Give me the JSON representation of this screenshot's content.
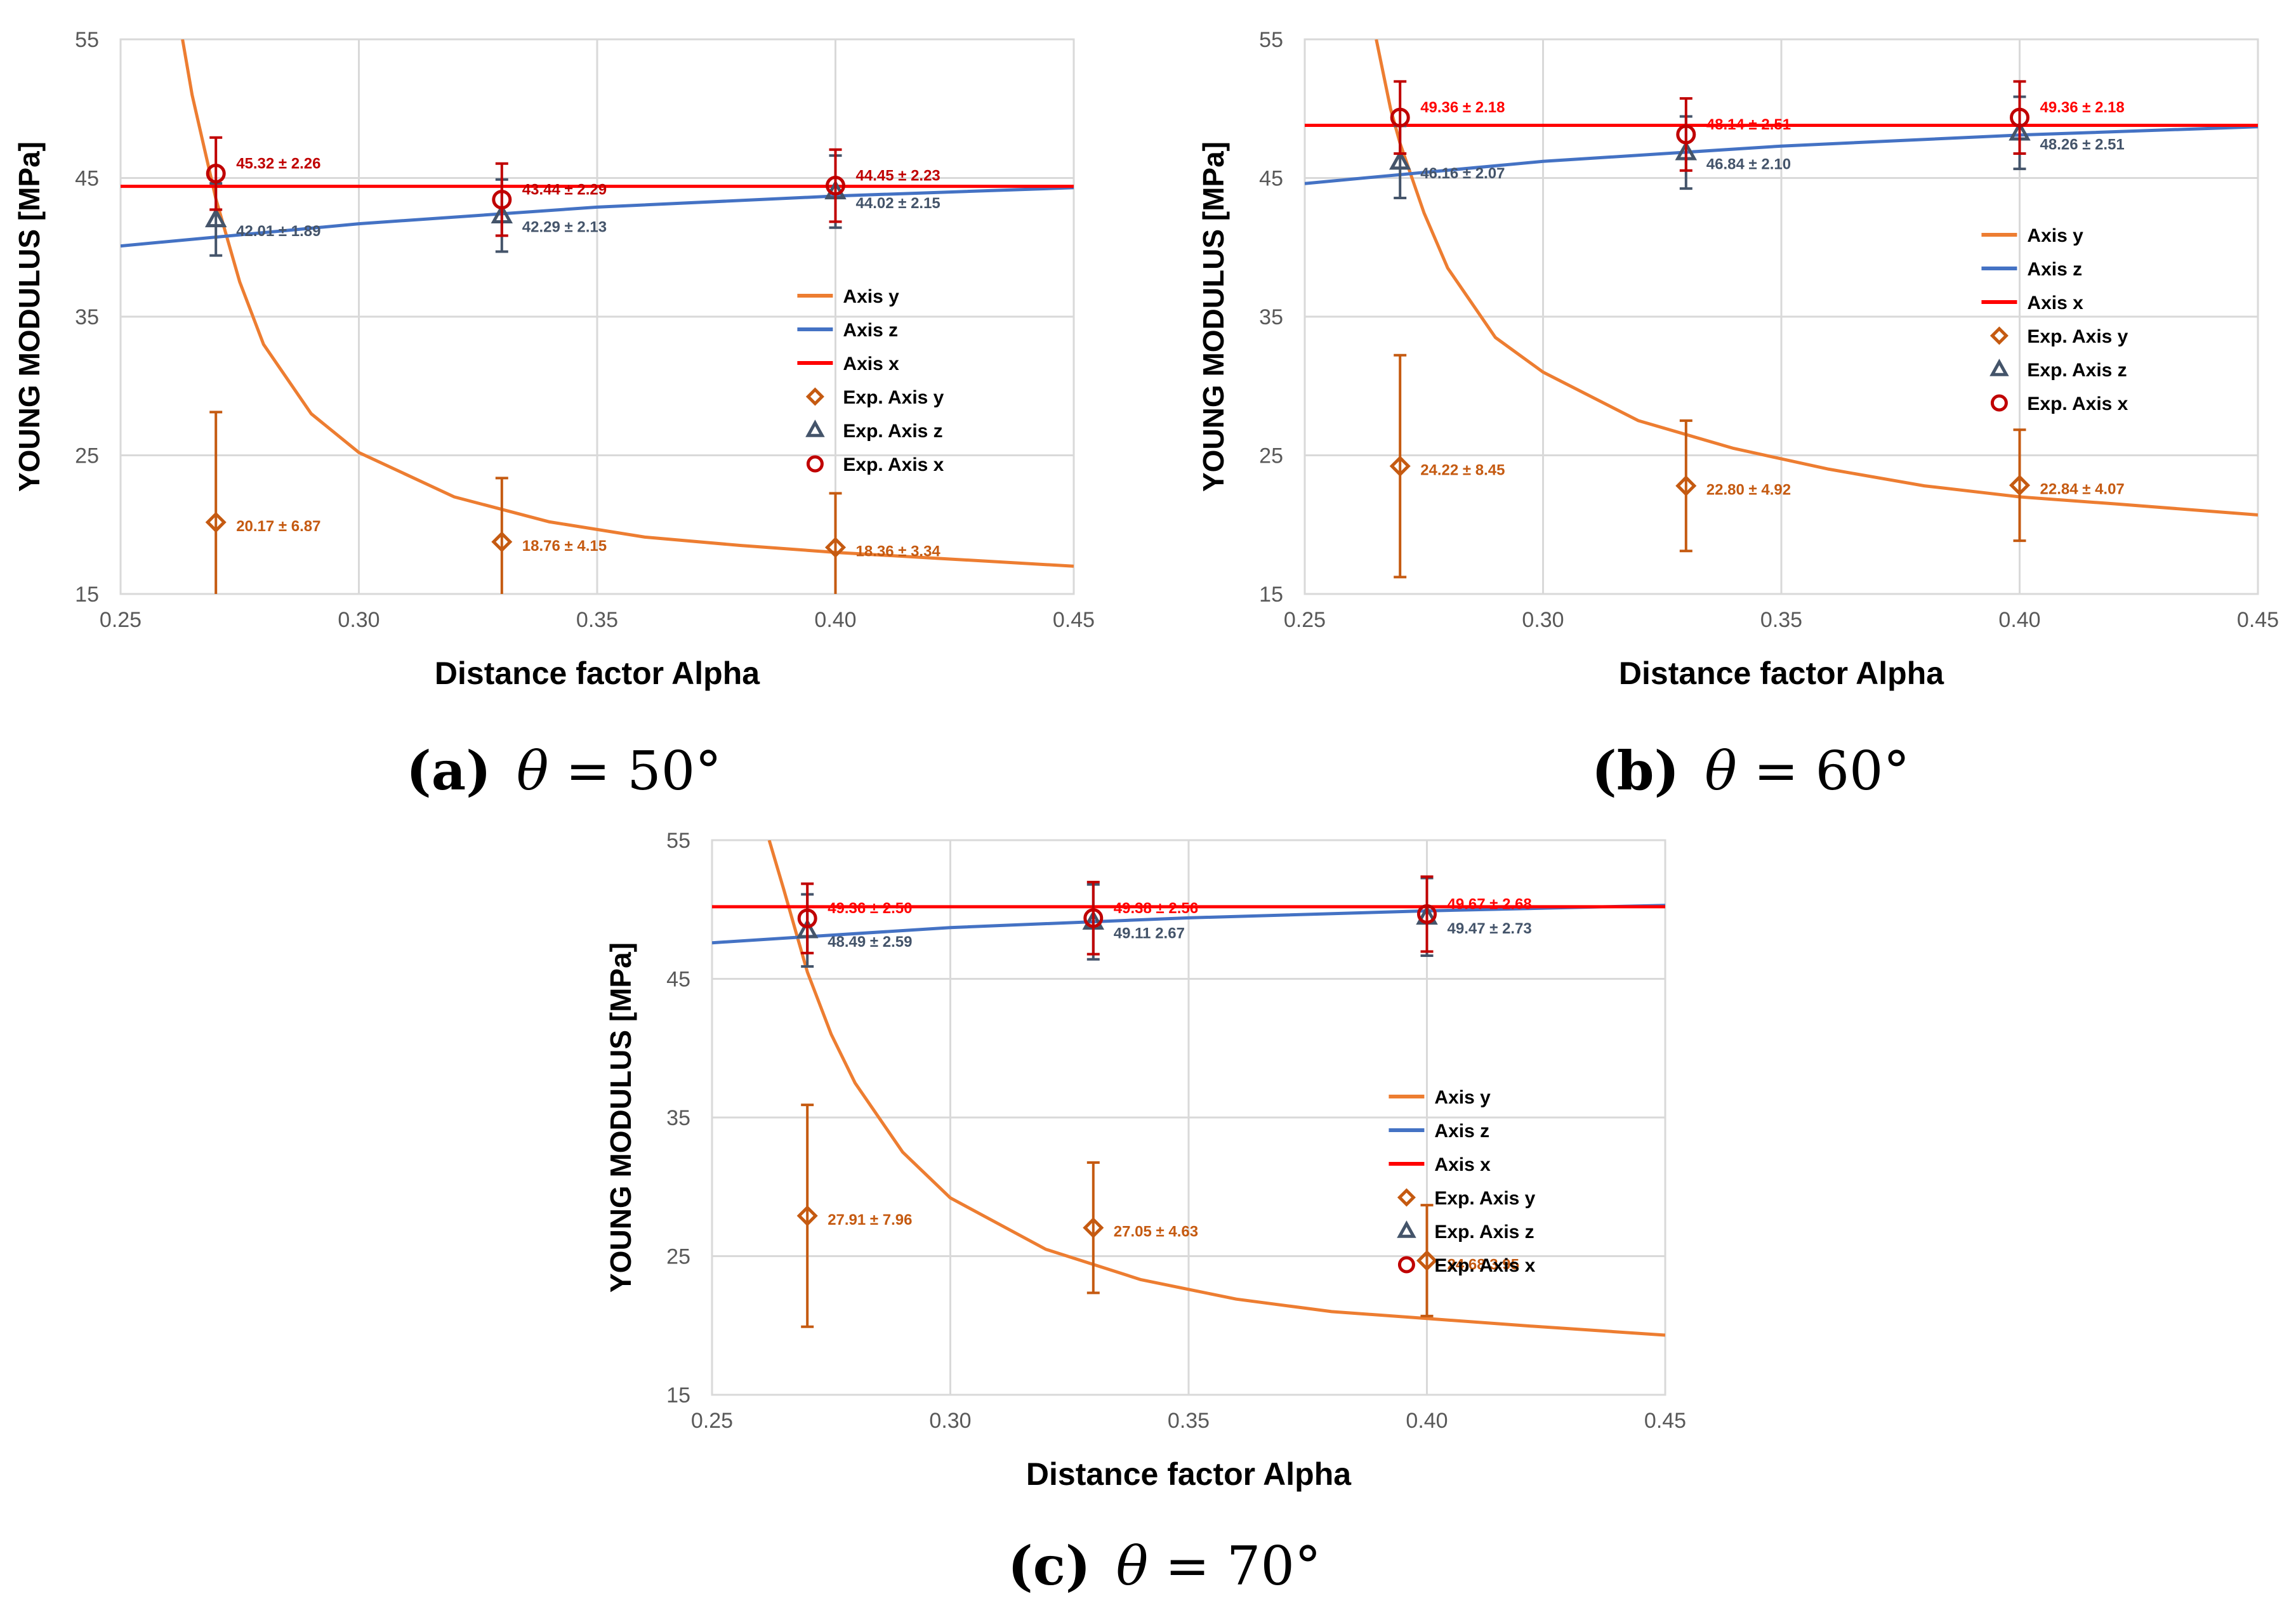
{
  "chart_data": [
    {
      "id": "a",
      "type": "line",
      "xlabel": "Distance factor Alpha",
      "ylabel": "YOUNG MODULUS [MPa]",
      "xlim": [
        0.25,
        0.45
      ],
      "ylim": [
        15,
        55
      ],
      "x_ticks": [
        "0.25",
        "0.30",
        "0.35",
        "0.40",
        "0.45"
      ],
      "y_ticks": [
        "15",
        "25",
        "35",
        "45",
        "55"
      ],
      "grid": true,
      "legend_placement": "right",
      "caption_label": "(a)",
      "caption_var": "θ",
      "caption_eq": "= 50°",
      "curves": [
        {
          "name": "Axis y",
          "color": "#ED7D31",
          "x": [
            0.263,
            0.265,
            0.27,
            0.275,
            0.28,
            0.29,
            0.3,
            0.32,
            0.34,
            0.36,
            0.38,
            0.4,
            0.42,
            0.45
          ],
          "y": [
            55.0,
            51.0,
            43.5,
            37.5,
            33.0,
            28.0,
            25.2,
            22.0,
            20.2,
            19.1,
            18.5,
            18.0,
            17.6,
            17.0
          ]
        },
        {
          "name": "Axis z",
          "color": "#4472C4",
          "x": [
            0.25,
            0.3,
            0.35,
            0.4,
            0.45
          ],
          "y": [
            40.1,
            41.7,
            42.9,
            43.7,
            44.3
          ]
        },
        {
          "name": "Axis x",
          "color": "#FF0000",
          "x": [
            0.25,
            0.45
          ],
          "y": [
            44.4,
            44.4
          ]
        }
      ],
      "points": [
        {
          "name": "Exp. Axis y",
          "marker": "diamond",
          "color": "#C55A11",
          "label_color": "#C55A11",
          "x": [
            0.27,
            0.33,
            0.4
          ],
          "y": [
            20.17,
            18.76,
            18.36
          ],
          "err": [
            7.95,
            4.6,
            3.9
          ],
          "labels": [
            "20.17 ± 6.87",
            "18.76 ± 4.15",
            "18.36 ± 3.34"
          ]
        },
        {
          "name": "Exp. Axis z",
          "marker": "triangle",
          "color": "#44546A",
          "label_color": "#44546A",
          "x": [
            0.27,
            0.33,
            0.4
          ],
          "y": [
            42.01,
            42.29,
            44.02
          ],
          "err": [
            2.6,
            2.6,
            2.6
          ],
          "labels": [
            "42.01 ± 1.89",
            "42.29 ± 2.13",
            "44.02 ± 2.15"
          ]
        },
        {
          "name": "Exp. Axis x",
          "marker": "circle",
          "color": "#C00000",
          "label_color": "#C00000",
          "x": [
            0.27,
            0.33,
            0.4
          ],
          "y": [
            45.32,
            43.44,
            44.45
          ],
          "err": [
            2.6,
            2.6,
            2.6
          ],
          "labels": [
            "45.32 ± 2.26",
            "43.44 ± 2.29",
            "44.45 ± 2.23"
          ]
        }
      ]
    },
    {
      "id": "b",
      "type": "line",
      "xlabel": "Distance factor Alpha",
      "ylabel": "YOUNG MODULUS [MPa]",
      "xlim": [
        0.25,
        0.45
      ],
      "ylim": [
        15,
        55
      ],
      "x_ticks": [
        "0.25",
        "0.30",
        "0.35",
        "0.40",
        "0.45"
      ],
      "y_ticks": [
        "15",
        "25",
        "35",
        "45",
        "55"
      ],
      "grid": true,
      "legend_placement": "right",
      "caption_label": "(b)",
      "caption_var": "θ",
      "caption_eq": "= 60°",
      "curves": [
        {
          "name": "Axis y",
          "color": "#ED7D31",
          "x": [
            0.265,
            0.268,
            0.27,
            0.275,
            0.28,
            0.29,
            0.3,
            0.32,
            0.34,
            0.36,
            0.38,
            0.4,
            0.42,
            0.45
          ],
          "y": [
            55.0,
            50.0,
            47.5,
            42.5,
            38.5,
            33.5,
            31.0,
            27.5,
            25.5,
            24.0,
            22.8,
            22.0,
            21.5,
            20.7
          ]
        },
        {
          "name": "Axis z",
          "color": "#4472C4",
          "x": [
            0.25,
            0.3,
            0.35,
            0.4,
            0.45
          ],
          "y": [
            44.6,
            46.2,
            47.3,
            48.1,
            48.7
          ]
        },
        {
          "name": "Axis x",
          "color": "#FF0000",
          "x": [
            0.25,
            0.45
          ],
          "y": [
            48.8,
            48.8
          ]
        }
      ],
      "points": [
        {
          "name": "Exp. Axis y",
          "marker": "diamond",
          "color": "#C55A11",
          "label_color": "#C55A11",
          "x": [
            0.27,
            0.33,
            0.4
          ],
          "y": [
            24.22,
            22.8,
            22.84
          ],
          "err": [
            8.0,
            4.7,
            4.0
          ],
          "labels": [
            "24.22 ± 8.45",
            "22.80 ± 4.92",
            "22.84 ± 4.07"
          ]
        },
        {
          "name": "Exp. Axis z",
          "marker": "triangle",
          "color": "#44546A",
          "label_color": "#44546A",
          "x": [
            0.27,
            0.33,
            0.4
          ],
          "y": [
            46.16,
            46.84,
            48.26
          ],
          "err": [
            2.6,
            2.6,
            2.6
          ],
          "labels": [
            "46.16 ± 2.07",
            "46.84 ± 2.10",
            "48.26 ± 2.51"
          ]
        },
        {
          "name": "Exp. Axis x",
          "marker": "circle",
          "color": "#C00000",
          "label_color": "#FF0000",
          "x": [
            0.27,
            0.33,
            0.4
          ],
          "y": [
            49.36,
            48.14,
            49.36
          ],
          "err": [
            2.6,
            2.6,
            2.6
          ],
          "labels": [
            "49.36 ± 2.18",
            "48.14 ± 2.51",
            "49.36 ± 2.18"
          ]
        }
      ]
    },
    {
      "id": "c",
      "type": "line",
      "xlabel": "Distance factor Alpha",
      "ylabel": "YOUNG MODULUS [MPa]",
      "xlim": [
        0.25,
        0.45
      ],
      "ylim": [
        15,
        55
      ],
      "x_ticks": [
        "0.25",
        "0.30",
        "0.35",
        "0.40",
        "0.45"
      ],
      "y_ticks": [
        "15",
        "25",
        "35",
        "45",
        "55"
      ],
      "grid": true,
      "legend_placement": "right",
      "caption_label": "(c)",
      "caption_var": "θ",
      "caption_eq": "= 70°",
      "curves": [
        {
          "name": "Axis y",
          "color": "#ED7D31",
          "x": [
            0.262,
            0.265,
            0.27,
            0.275,
            0.28,
            0.29,
            0.3,
            0.32,
            0.34,
            0.36,
            0.38,
            0.4,
            0.42,
            0.45
          ],
          "y": [
            55.0,
            51.5,
            45.5,
            41.0,
            37.5,
            32.5,
            29.2,
            25.5,
            23.3,
            21.9,
            21.0,
            20.5,
            20.0,
            19.3
          ]
        },
        {
          "name": "Axis z",
          "color": "#4472C4",
          "x": [
            0.25,
            0.3,
            0.35,
            0.4,
            0.45
          ],
          "y": [
            47.6,
            48.7,
            49.4,
            49.9,
            50.3
          ]
        },
        {
          "name": "Axis x",
          "color": "#FF0000",
          "x": [
            0.25,
            0.45
          ],
          "y": [
            50.2,
            50.2
          ]
        }
      ],
      "points": [
        {
          "name": "Exp. Axis y",
          "marker": "diamond",
          "color": "#C55A11",
          "label_color": "#C55A11",
          "x": [
            0.27,
            0.33,
            0.4
          ],
          "y": [
            27.91,
            27.05,
            24.68
          ],
          "err": [
            8.0,
            4.7,
            4.0
          ],
          "labels": [
            "27.91 ± 7.96",
            "27.05 ± 4.63",
            "24.68 3.95"
          ]
        },
        {
          "name": "Exp. Axis z",
          "marker": "triangle",
          "color": "#44546A",
          "label_color": "#44546A",
          "x": [
            0.27,
            0.33,
            0.4
          ],
          "y": [
            48.49,
            49.11,
            49.47
          ],
          "err": [
            2.6,
            2.7,
            2.8
          ],
          "labels": [
            "48.49 ± 2.59",
            "49.11 2.67",
            "49.47 ± 2.73"
          ]
        },
        {
          "name": "Exp. Axis x",
          "marker": "circle",
          "color": "#C00000",
          "label_color": "#FF0000",
          "x": [
            0.27,
            0.33,
            0.4
          ],
          "y": [
            49.36,
            49.38,
            49.67
          ],
          "err": [
            2.5,
            2.6,
            2.7
          ],
          "labels": [
            "49.36 ± 2.50",
            "49.38 ± 2.56",
            "49.67 ± 2.68"
          ]
        }
      ]
    }
  ]
}
